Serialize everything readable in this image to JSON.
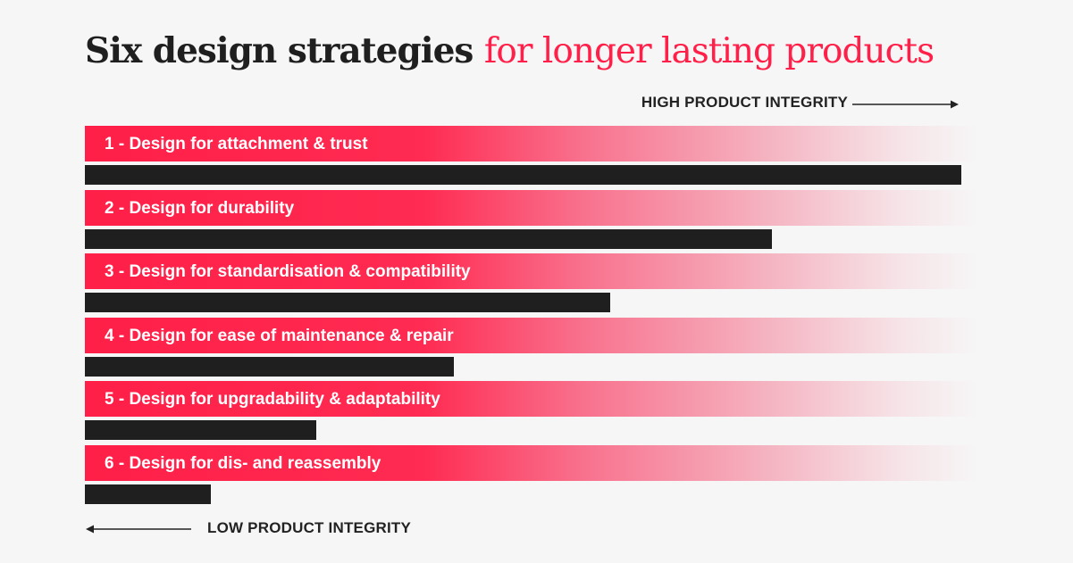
{
  "header": {
    "title_part1": "Six design strategies",
    "title_part2": "for longer lasting products",
    "title_part1_color": "#1f1f1f",
    "title_part2_color": "#ff1f48"
  },
  "axis": {
    "high_label": "HIGH PRODUCT INTEGRITY",
    "low_label": "LOW PRODUCT INTEGRITY"
  },
  "colors": {
    "accent": "#ff1f48",
    "bar": "#1f1f1f",
    "background": "#f6f6f6"
  },
  "chart_data": {
    "type": "bar",
    "orientation": "horizontal",
    "categories": [
      "1 - Design for attachment & trust",
      "2 - Design for durability",
      "3 - Design for standardisation & compatibility",
      "4 - Design for ease of maintenance & repair",
      "5 - Design for upgradability & adaptability",
      "6 - Design for dis- and reassembly"
    ],
    "values": [
      100,
      78.4,
      59.9,
      42.1,
      26.4,
      14.4
    ],
    "xlim": [
      0,
      100
    ],
    "xlabel_high": "HIGH PRODUCT INTEGRITY",
    "xlabel_low": "LOW PRODUCT INTEGRITY",
    "grid": false,
    "legend": "none"
  }
}
